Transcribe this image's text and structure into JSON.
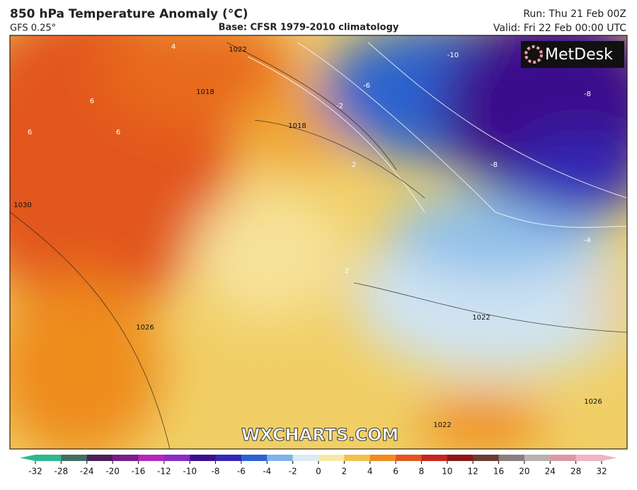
{
  "header": {
    "title": "850 hPa Temperature Anomaly (°C)",
    "model": "GFS 0.25°",
    "base": "Base: CFSR 1979-2010 climatology",
    "run": "Run: Thu 21 Feb 00Z",
    "valid": "Valid: Fri 22 Feb 00:00 UTC"
  },
  "logo": "MetDesk",
  "watermark": "WXCHARTS.COM",
  "isobar_labels": [
    "1022",
    "1018",
    "1018",
    "1026",
    "1022",
    "1022",
    "1026",
    "1030"
  ],
  "anomaly_labels": [
    "-10",
    "-6",
    "-8",
    "-8",
    "-4",
    "-2",
    "6",
    "6",
    "6",
    "4",
    "2",
    "2"
  ],
  "colorbar": {
    "ticks": [
      -32,
      -28,
      -24,
      -20,
      -16,
      -12,
      -10,
      -8,
      -6,
      -4,
      -2,
      0,
      2,
      4,
      6,
      8,
      10,
      12,
      16,
      20,
      24,
      28,
      32
    ],
    "colors": [
      "#2fb88f",
      "#3f6f62",
      "#4a1f5a",
      "#7a1c8a",
      "#b429b8",
      "#8e2bc4",
      "#3b0f8c",
      "#3327b5",
      "#2a63cf",
      "#7db4e6",
      "#dceaf5",
      "#f6e9a6",
      "#f2c14b",
      "#ee8c1f",
      "#e0561e",
      "#c8261c",
      "#8f1616",
      "#6b3b34",
      "#8a7f7f",
      "#b9b0b0",
      "#d99aa5",
      "#f0b4c3"
    ]
  }
}
